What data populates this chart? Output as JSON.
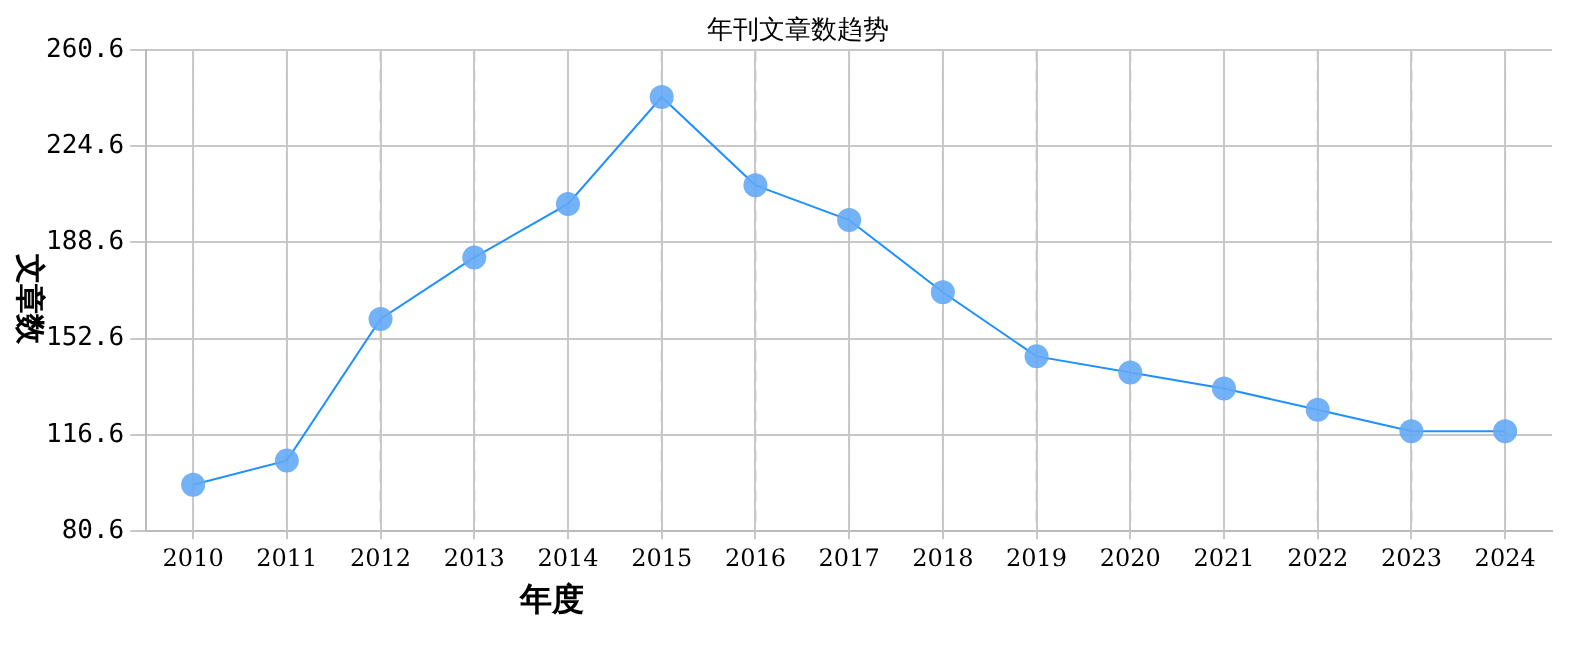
{
  "chart_data": {
    "type": "line",
    "title": "年刊文章数趋势",
    "xlabel": "年度",
    "ylabel": "文章数",
    "categories": [
      "2010",
      "2011",
      "2012",
      "2013",
      "2014",
      "2015",
      "2016",
      "2017",
      "2018",
      "2019",
      "2020",
      "2021",
      "2022",
      "2023",
      "2024"
    ],
    "series": [
      {
        "color": "#1e90ff",
        "values": [
          98,
          107,
          160,
          183,
          203,
          243,
          210,
          197,
          170,
          146,
          140,
          134,
          126,
          118,
          118
        ]
      }
    ],
    "ylim": [
      80.6,
      260.6
    ],
    "yticks": [
      80.6,
      116.6,
      152.6,
      188.6,
      224.6,
      260.6
    ],
    "grid": true,
    "marker": "circle",
    "legend": false
  }
}
